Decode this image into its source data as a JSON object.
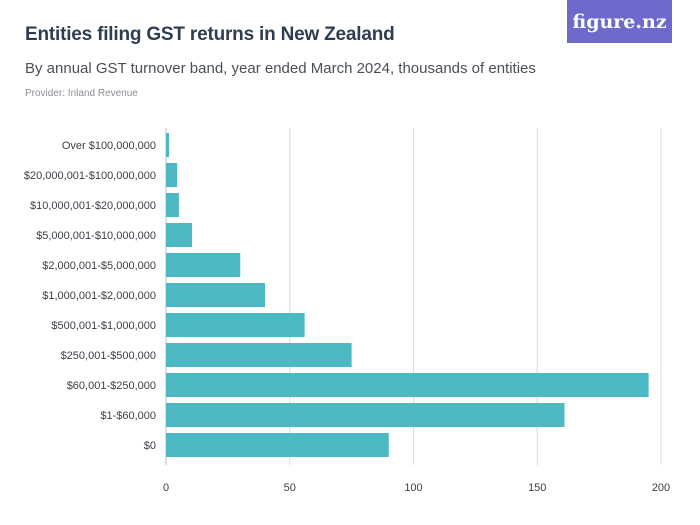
{
  "header": {
    "title": "Entities filing GST returns in New Zealand",
    "subtitle": "By annual GST turnover band, year ended March 2024, thousands of entities",
    "provider": "Provider: Inland Revenue",
    "logo": "figure.nz"
  },
  "colors": {
    "bar": "#4cb8c4",
    "grid": "#d9dce0",
    "logo_bg": "#6e6acb"
  },
  "chart_data": {
    "type": "bar",
    "orientation": "horizontal",
    "categories": [
      "Over $100,000,000",
      "$20,000,001-$100,000,000",
      "$10,000,001-$20,000,000",
      "$5,000,001-$10,000,000",
      "$2,000,001-$5,000,000",
      "$1,000,001-$2,000,000",
      "$500,001-$1,000,000",
      "$250,001-$500,000",
      "$60,001-$250,000",
      "$1-$60,000",
      "$0"
    ],
    "values": [
      1.2,
      4.5,
      5.2,
      10.5,
      30,
      40,
      56,
      75,
      195,
      161,
      90
    ],
    "xlim": [
      0,
      200
    ],
    "xticks": [
      "0",
      "50",
      "100",
      "150",
      "200"
    ],
    "xtick_values": [
      0,
      50,
      100,
      150,
      200
    ],
    "grid": true
  }
}
